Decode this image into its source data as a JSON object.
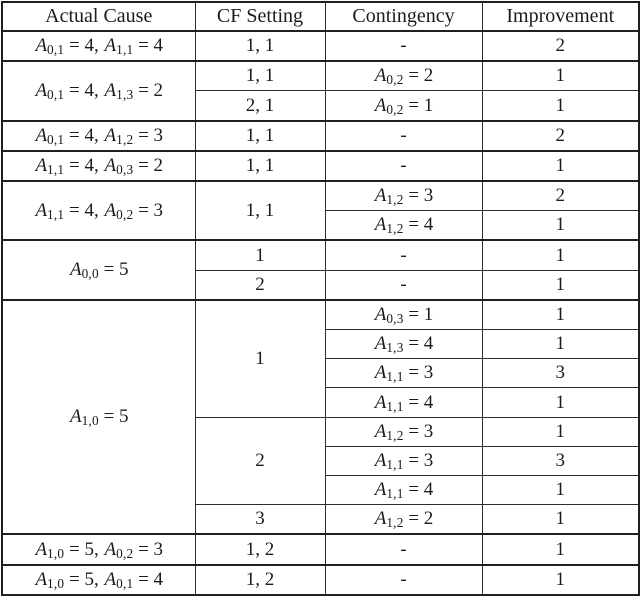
{
  "table": {
    "headers": [
      "Actual Cause",
      "CF Setting",
      "Contingency",
      "Improvement"
    ],
    "rows": [
      {
        "cause": "A_{0,1} = 4, A_{1,1} = 4",
        "cf": "1, 1",
        "contingency": "-",
        "improvement": "2"
      },
      {
        "cause": "A_{0,1} = 4, A_{1,3} = 2",
        "cf": "1, 1",
        "contingency": "A_{0,2} = 2",
        "improvement": "1"
      },
      {
        "cf": "2, 1",
        "contingency": "A_{0,2} = 1",
        "improvement": "1"
      },
      {
        "cause": "A_{0,1} = 4, A_{1,2} = 3",
        "cf": "1, 1",
        "contingency": "-",
        "improvement": "2"
      },
      {
        "cause": "A_{1,1} = 4, A_{0,3} = 2",
        "cf": "1, 1",
        "contingency": "-",
        "improvement": "1"
      },
      {
        "cause": "A_{1,1} = 4, A_{0,2} = 3",
        "cf": "1, 1",
        "contingency": "A_{1,2} = 3",
        "improvement": "2"
      },
      {
        "contingency": "A_{1,2} = 4",
        "improvement": "1"
      },
      {
        "cause": "A_{0,0} = 5",
        "cf": "1",
        "contingency": "-",
        "improvement": "1"
      },
      {
        "cf": "2",
        "contingency": "-",
        "improvement": "1"
      },
      {
        "cause": "A_{1,0} = 5",
        "cf": "1",
        "contingency": "A_{0,3} = 1",
        "improvement": "1"
      },
      {
        "contingency": "A_{1,3} = 4",
        "improvement": "1"
      },
      {
        "contingency": "A_{1,1} = 3",
        "improvement": "3"
      },
      {
        "contingency": "A_{1,1} = 4",
        "improvement": "1"
      },
      {
        "cf": "2",
        "contingency": "A_{1,2} = 3",
        "improvement": "1"
      },
      {
        "contingency": "A_{1,1} = 3",
        "improvement": "3"
      },
      {
        "contingency": "A_{1,1} = 4",
        "improvement": "1"
      },
      {
        "cf": "3",
        "contingency": "A_{1,2} = 2",
        "improvement": "1"
      },
      {
        "cause": "A_{1,0} = 5, A_{0,2} = 3",
        "cf": "1, 2",
        "contingency": "-",
        "improvement": "1"
      },
      {
        "cause": "A_{1,0} = 5, A_{0,1} = 4",
        "cf": "1, 2",
        "contingency": "-",
        "improvement": "1"
      }
    ]
  }
}
